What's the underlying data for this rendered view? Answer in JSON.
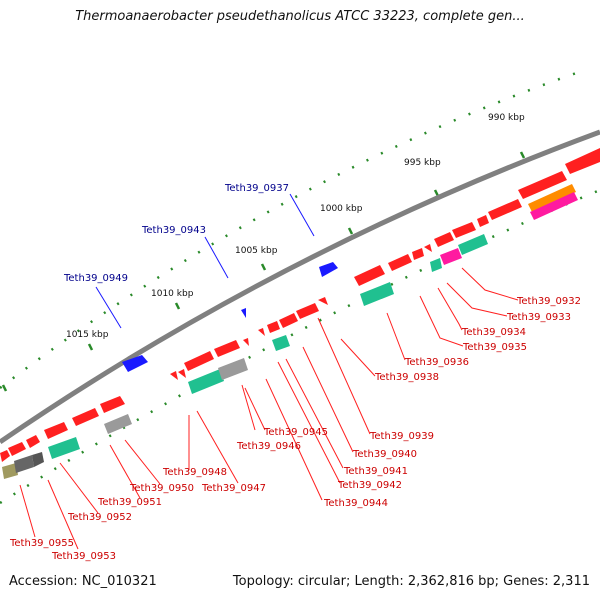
{
  "title": "Thermoanaerobacter pseudethanolicus ATCC 33223, complete gen...",
  "footer": {
    "accession": "Accession: NC_010321",
    "summary": "Topology: circular; Length: 2,362,816 bp; Genes: 2,311"
  },
  "colors": {
    "backbone": "#808080",
    "forward_gene": "#ff2020",
    "reverse_gene": "#1a1aff",
    "tick": "#2a8a2a",
    "label_fwd": "#cc0000",
    "label_rev": "#00008b",
    "cog_teal": "#20c090",
    "cog_gray": "#9a9a9a",
    "cog_dark": "#555555",
    "cog_olive": "#a09a60",
    "cog_magenta": "#ff1aa0",
    "cog_orange": "#ff8c00"
  },
  "scale_labels": [
    "990 kbp",
    "995 kbp",
    "1000 kbp",
    "1005 kbp",
    "1010 kbp",
    "1015 kbp"
  ],
  "reverse_genes": [
    "Teth39_0937",
    "Teth39_0943",
    "Teth39_0949"
  ],
  "forward_genes": [
    "Teth39_0932",
    "Teth39_0933",
    "Teth39_0934",
    "Teth39_0935",
    "Teth39_0936",
    "Teth39_0938",
    "Teth39_0939",
    "Teth39_0940",
    "Teth39_0941",
    "Teth39_0942",
    "Teth39_0944",
    "Teth39_0945",
    "Teth39_0946",
    "Teth39_0947",
    "Teth39_0948",
    "Teth39_0950",
    "Teth39_0951",
    "Teth39_0952",
    "Teth39_0953",
    "Teth39_0955"
  ]
}
